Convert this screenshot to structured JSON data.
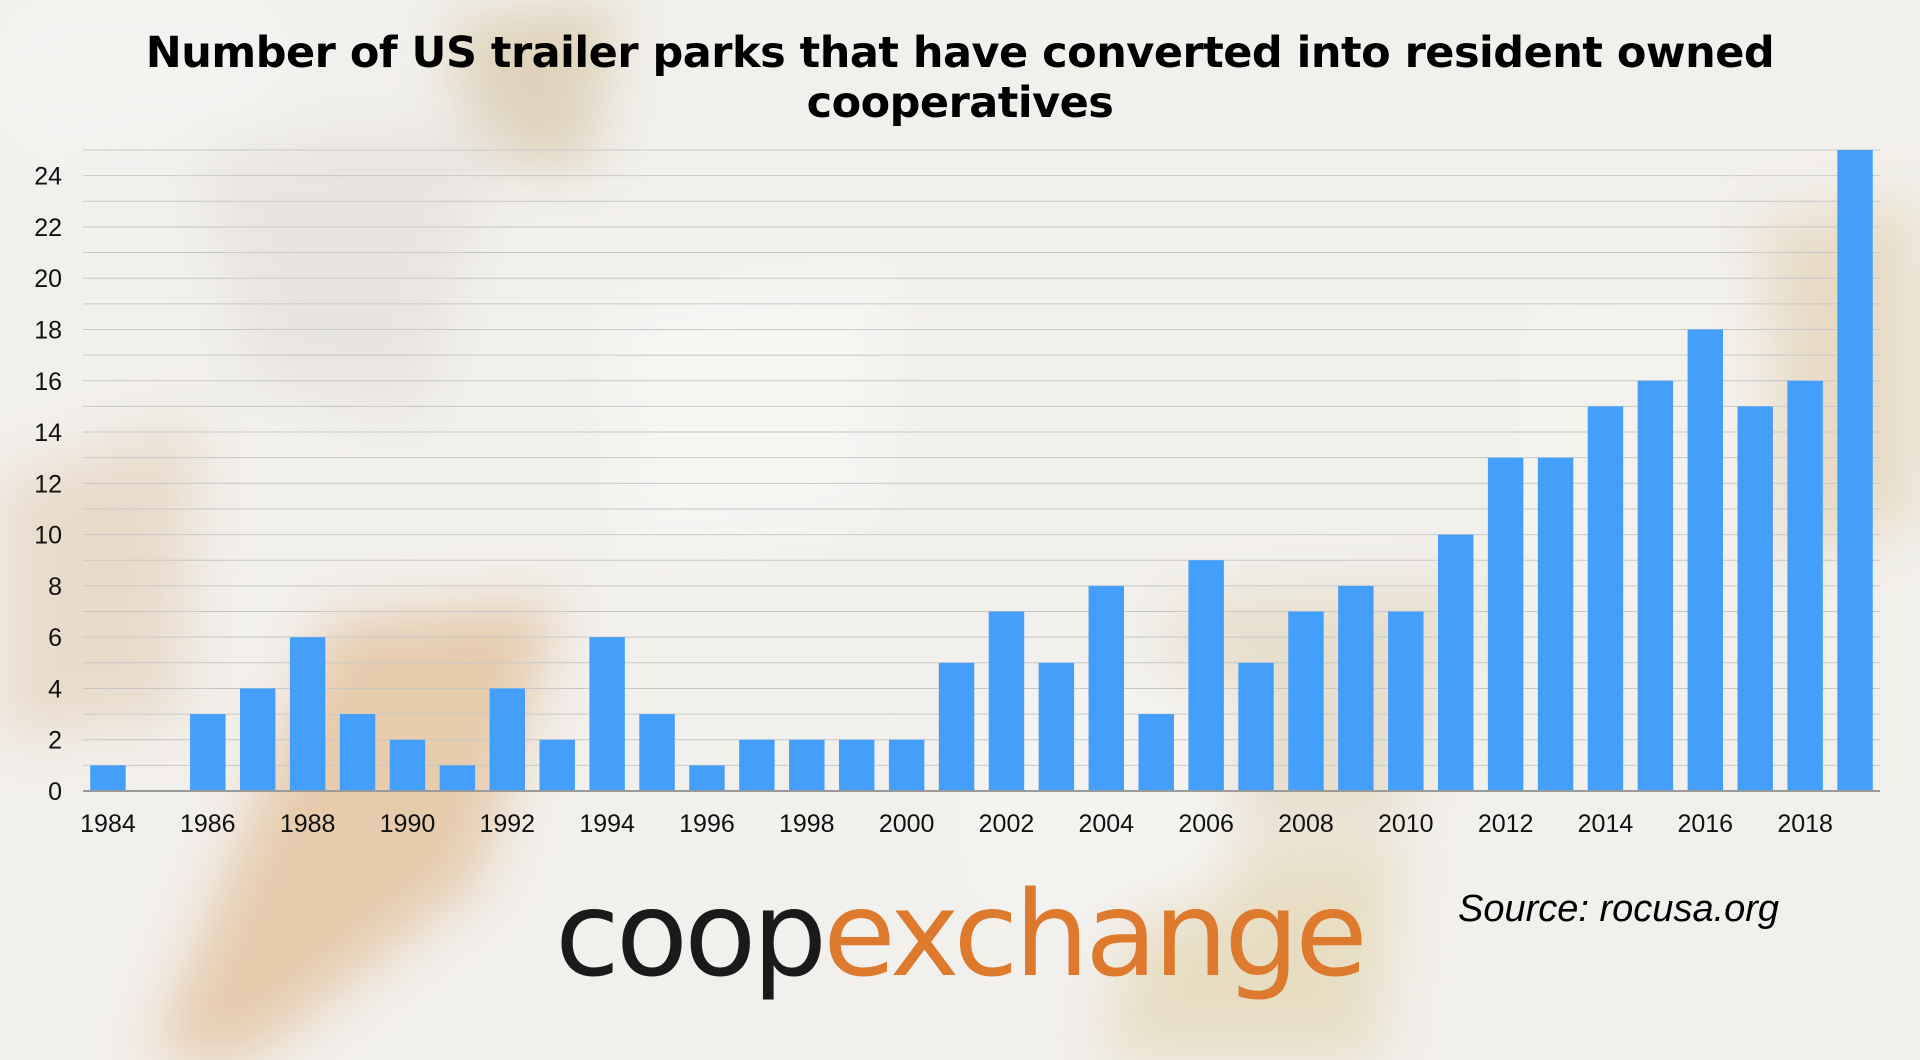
{
  "title": "Number of US trailer parks that have converted into resident owned cooperatives",
  "source": "Source: rocusa.org",
  "logo": {
    "part1": "coop",
    "part2": "exchange",
    "color1": "#1a1a1a",
    "color2": "#dd7a2e"
  },
  "colors": {
    "bar": "#449ffb",
    "grid": "#c8c8c8",
    "axis": "#9a9a9a"
  },
  "chart_data": {
    "type": "bar",
    "title": "Number of US trailer parks that have converted into resident owned cooperatives",
    "xlabel": "",
    "ylabel": "",
    "categories": [
      "1984",
      "1985",
      "1986",
      "1987",
      "1988",
      "1989",
      "1990",
      "1991",
      "1992",
      "1993",
      "1994",
      "1995",
      "1996",
      "1997",
      "1998",
      "1999",
      "2000",
      "2001",
      "2002",
      "2003",
      "2004",
      "2005",
      "2006",
      "2007",
      "2008",
      "2009",
      "2010",
      "2011",
      "2012",
      "2013",
      "2014",
      "2015",
      "2016",
      "2017",
      "2018",
      "2019"
    ],
    "x_tick_labels": [
      "1984",
      "",
      "1986",
      "",
      "1988",
      "",
      "1990",
      "",
      "1992",
      "",
      "1994",
      "",
      "1996",
      "",
      "1998",
      "",
      "2000",
      "",
      "2002",
      "",
      "2004",
      "",
      "2006",
      "",
      "2008",
      "",
      "2010",
      "",
      "2012",
      "",
      "2014",
      "",
      "2016",
      "",
      "2018",
      ""
    ],
    "values": [
      1,
      0,
      3,
      4,
      6,
      3,
      2,
      1,
      4,
      2,
      6,
      3,
      1,
      2,
      2,
      2,
      2,
      5,
      7,
      5,
      8,
      3,
      9,
      5,
      7,
      8,
      7,
      10,
      13,
      13,
      15,
      16,
      18,
      15,
      16,
      25
    ],
    "ylim": [
      0,
      25
    ],
    "y_ticks": [
      0,
      2,
      4,
      6,
      8,
      10,
      12,
      14,
      16,
      18,
      20,
      22,
      24
    ],
    "grid": true,
    "legend": "none"
  }
}
